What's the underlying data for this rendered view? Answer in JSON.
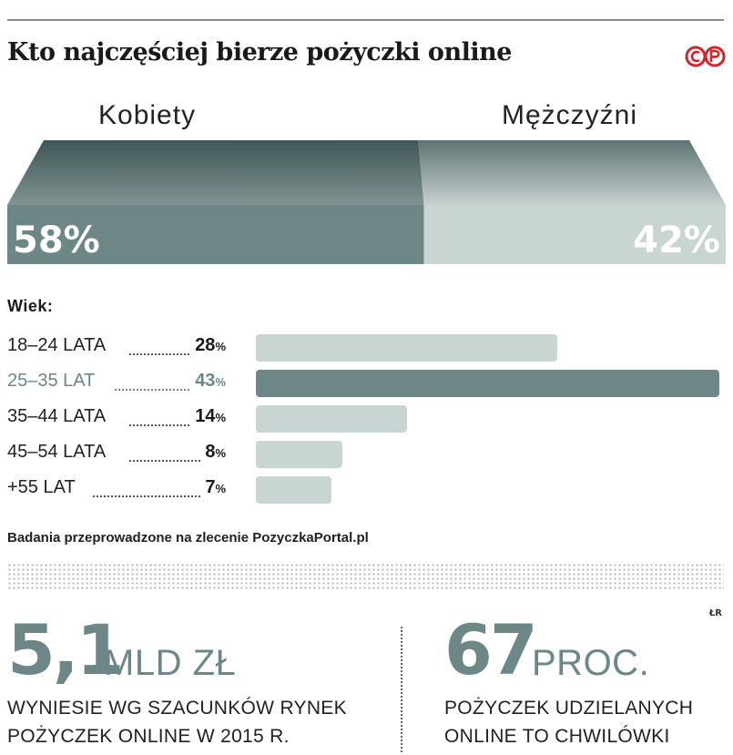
{
  "title": "Kto najczęściej bierze pożyczki online",
  "logo_text": "©P",
  "chart_data": [
    {
      "type": "bar",
      "orientation": "stacked-horizontal",
      "categories": [
        "Kobiety",
        "Mężczyźni"
      ],
      "values": [
        58,
        42
      ],
      "value_labels": [
        "58%",
        "42%"
      ],
      "unit": "%",
      "colors": [
        "#6d8787",
        "#c9d5d3"
      ]
    },
    {
      "type": "bar",
      "orientation": "horizontal",
      "title": "Wiek:",
      "categories": [
        "18–24 LATA",
        "25–35 LAT",
        "35–44 LATA",
        "45–54 LATA",
        "+55 LAT"
      ],
      "values": [
        28,
        43,
        14,
        8,
        7
      ],
      "unit": "%",
      "highlight_index": 1,
      "colors": {
        "default": "#c9d5d3",
        "highlight": "#6d8787"
      }
    }
  ],
  "source": "Badania przeprowadzone na zlecenie PozyczkaPortal.pl",
  "credit": "ŁR",
  "stats": [
    {
      "value": "5,1",
      "unit": "MLD ZŁ",
      "desc_line1": "WYNIESIE WG SZACUNKÓW RYNEK",
      "desc_line2": "POŻYCZEK ONLINE W 2015 R."
    },
    {
      "value": "67",
      "unit": "PROC.",
      "desc_line1": "POŻYCZEK UDZIELANYCH",
      "desc_line2": "ONLINE TO CHWILÓWKI"
    }
  ]
}
